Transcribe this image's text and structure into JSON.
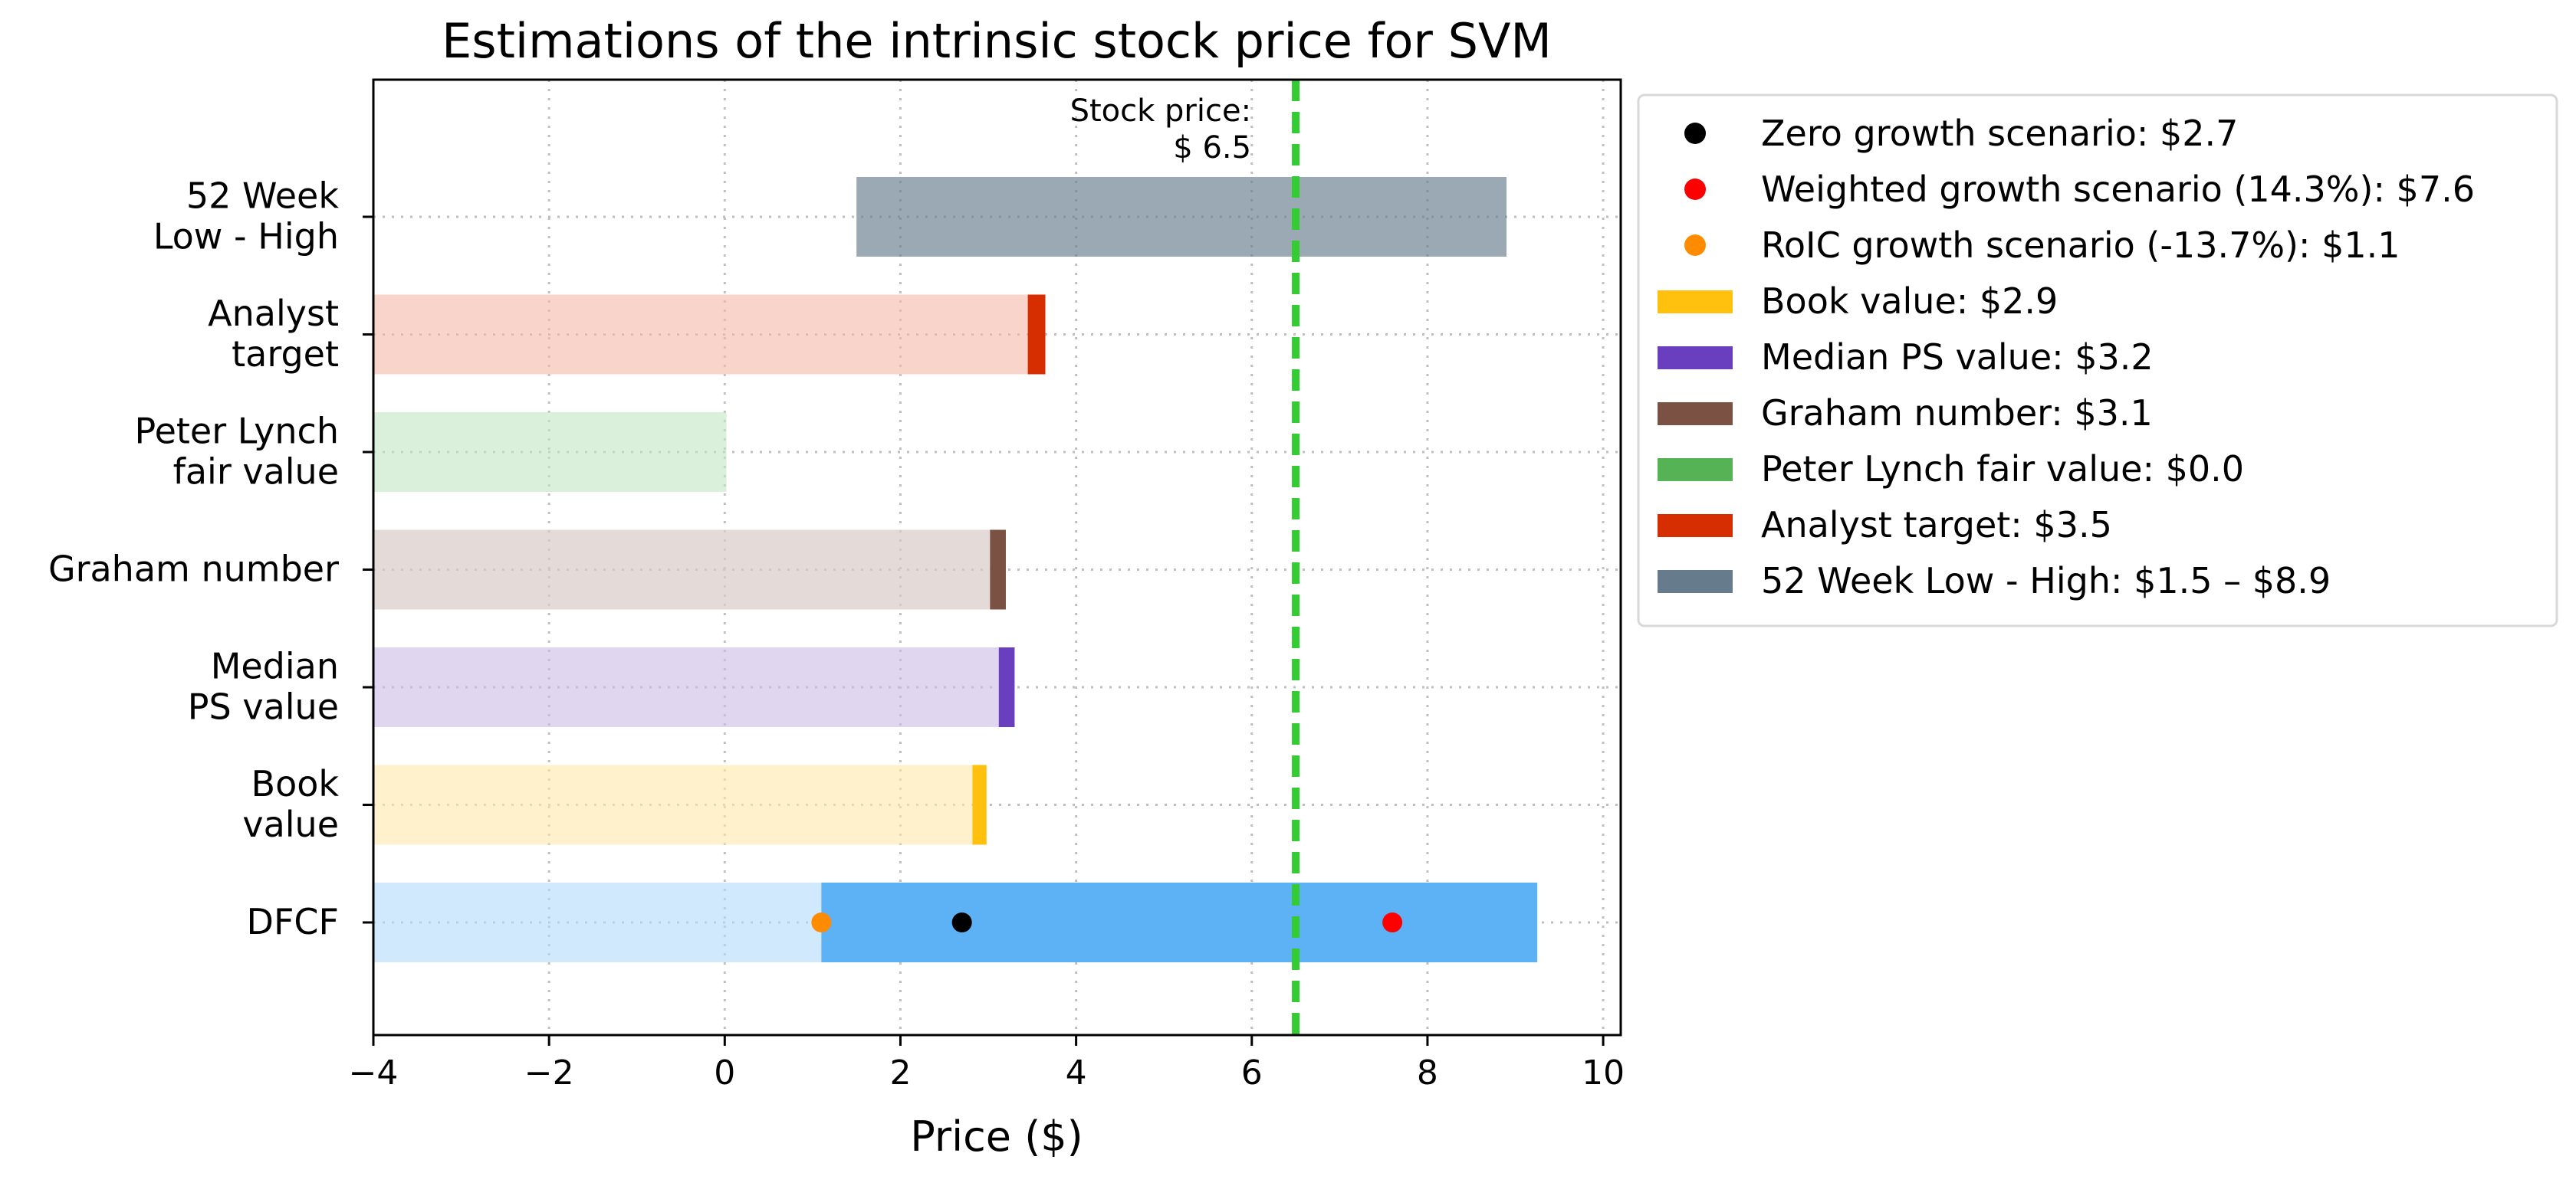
{
  "chart_data": {
    "type": "bar",
    "orientation": "horizontal",
    "title": "Estimations of the intrinsic stock price for SVM",
    "xlabel": "Price ($)",
    "ylabel": "",
    "xlim": [
      -4,
      10.2
    ],
    "x_ticks": [
      -4,
      -2,
      0,
      2,
      4,
      6,
      8,
      10
    ],
    "x_tick_labels": [
      "−4",
      "−2",
      "0",
      "2",
      "4",
      "6",
      "8",
      "10"
    ],
    "grid": true,
    "legend_position": "outside-right",
    "categories": [
      {
        "key": "week52",
        "label": [
          "52 Week",
          "Low - High"
        ]
      },
      {
        "key": "analyst",
        "label": [
          "Analyst",
          "target"
        ]
      },
      {
        "key": "lynch",
        "label": [
          "Peter Lynch",
          "fair value"
        ]
      },
      {
        "key": "graham",
        "label": [
          "Graham number"
        ]
      },
      {
        "key": "median_ps",
        "label": [
          "Median",
          "PS value"
        ]
      },
      {
        "key": "book",
        "label": [
          "Book",
          "value"
        ]
      },
      {
        "key": "dfcf",
        "label": [
          "DFCF"
        ]
      }
    ],
    "bars": [
      {
        "category": "week52",
        "start": 1.5,
        "end": 8.9,
        "color": "#667b8c",
        "alpha": 0.65
      },
      {
        "category": "analyst",
        "start": -4,
        "end": 3.65,
        "color": "#f4b7a8",
        "alpha": 0.6,
        "marker_start": 3.45,
        "marker_color": "#d62e00"
      },
      {
        "category": "lynch",
        "start": -4,
        "end": 0.02,
        "color": "#c3e6c3",
        "alpha": 0.6
      },
      {
        "category": "graham",
        "start": -4,
        "end": 3.2,
        "color": "#d9ccc8",
        "alpha": 0.7,
        "marker_start": 3.02,
        "marker_color": "#7b5143"
      },
      {
        "category": "median_ps",
        "start": -4,
        "end": 3.3,
        "color": "#cbbbe6",
        "alpha": 0.6,
        "marker_start": 3.12,
        "marker_color": "#6a3fbf"
      },
      {
        "category": "book",
        "start": -4,
        "end": 2.98,
        "color": "#ffe7a8",
        "alpha": 0.6,
        "marker_start": 2.82,
        "marker_color": "#ffc10d"
      },
      {
        "category": "dfcf",
        "start": -4,
        "end": 1.1,
        "color": "#b3dafb",
        "alpha": 0.6
      },
      {
        "category": "dfcf",
        "start": 1.1,
        "end": 9.25,
        "color": "#5db1f5",
        "alpha": 1
      }
    ],
    "points": [
      {
        "category": "dfcf",
        "x": 1.1,
        "color": "#ff8c00"
      },
      {
        "category": "dfcf",
        "x": 2.7,
        "color": "#000000"
      },
      {
        "category": "dfcf",
        "x": 7.6,
        "color": "#ff0000"
      }
    ],
    "stock_price_line": {
      "x": 6.5,
      "color": "#33cc33",
      "label": [
        "Stock price:",
        "$ 6.5"
      ]
    },
    "legend": [
      {
        "type": "marker",
        "color": "#000000",
        "label": "Zero growth scenario: $2.7"
      },
      {
        "type": "marker",
        "color": "#ff0000",
        "label": "Weighted growth scenario (14.3%): $7.6"
      },
      {
        "type": "marker",
        "color": "#ff8c00",
        "label": "RoIC growth scenario (-13.7%): $1.1"
      },
      {
        "type": "patch",
        "color": "#ffc10d",
        "label": "Book value: $2.9"
      },
      {
        "type": "patch",
        "color": "#6a3fbf",
        "label": "Median PS value: $3.2"
      },
      {
        "type": "patch",
        "color": "#7b5143",
        "label": "Graham number: $3.1"
      },
      {
        "type": "patch",
        "color": "#55b255",
        "label": "Peter Lynch fair value: $0.0"
      },
      {
        "type": "patch",
        "color": "#d62e00",
        "label": "Analyst target: $3.5"
      },
      {
        "type": "patch",
        "color": "#667b8c",
        "label": "52 Week Low - High: $1.5 – $8.9"
      }
    ]
  }
}
